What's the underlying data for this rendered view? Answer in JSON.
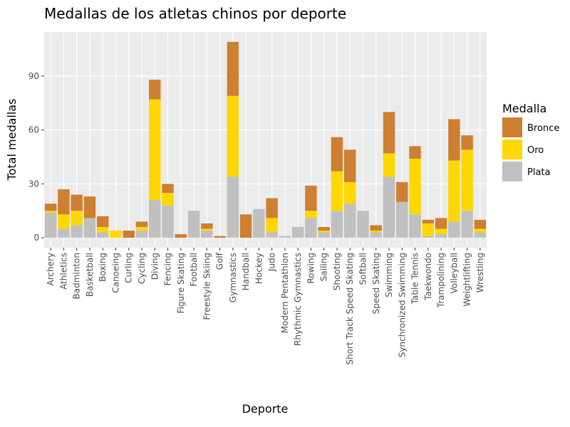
{
  "chart_data": {
    "type": "stacked_bar",
    "title": "Medallas de los atletas chinos por deporte",
    "x_label": "Deporte",
    "y_label": "Total medallas",
    "legend_title": "Medalla",
    "categories": [
      "Archery",
      "Athletics",
      "Badminton",
      "Basketball",
      "Boxing",
      "Canoeing",
      "Curling",
      "Cycling",
      "Diving",
      "Fencing",
      "Figure Skating",
      "Football",
      "Freestyle Skiing",
      "Golf",
      "Gymnastics",
      "Handball",
      "Hockey",
      "Judo",
      "Modern Pentathlon",
      "Rhythmic Gymnastics",
      "Rowing",
      "Sailing",
      "Shooting",
      "Short Track Speed Skating",
      "Softball",
      "Speed Skating",
      "Swimming",
      "Synchronized Swimming",
      "Table Tennis",
      "Taekwondo",
      "Trampolining",
      "Volleyball",
      "Weightlifting",
      "Wrestling"
    ],
    "series": [
      {
        "name": "Bronce",
        "color": "#cd7f32",
        "values": [
          4,
          14,
          9,
          12,
          6,
          0,
          4,
          3,
          11,
          5,
          2,
          0,
          3,
          1,
          30,
          13,
          0,
          11,
          0,
          0,
          14,
          2,
          19,
          18,
          0,
          3,
          23,
          11,
          7,
          2,
          6,
          23,
          8,
          5
        ]
      },
      {
        "name": "Oro",
        "color": "#ffd700",
        "values": [
          1,
          8,
          8,
          0,
          3,
          4,
          0,
          2,
          56,
          7,
          0,
          0,
          1,
          0,
          45,
          0,
          0,
          8,
          0,
          0,
          4,
          1,
          22,
          12,
          0,
          1,
          13,
          0,
          31,
          7,
          3,
          34,
          34,
          2
        ]
      },
      {
        "name": "Plata",
        "color": "#c0c0c0",
        "values": [
          14,
          5,
          7,
          11,
          3,
          0,
          0,
          4,
          21,
          18,
          0,
          15,
          4,
          0,
          34,
          0,
          16,
          3,
          1,
          6,
          11,
          3,
          15,
          19,
          15,
          3,
          34,
          20,
          13,
          1,
          2,
          9,
          15,
          3
        ]
      }
    ],
    "ylim": [
      -5.5,
      114.5
    ],
    "yticks": [
      0,
      30,
      60,
      90
    ],
    "grid": true,
    "legend_position": "right"
  }
}
